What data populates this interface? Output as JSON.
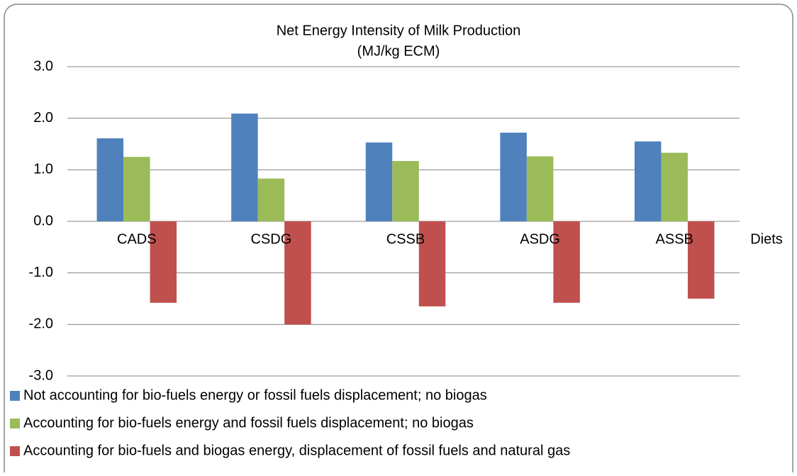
{
  "chart_data": {
    "type": "bar",
    "title": "Net Energy Intensity of Milk Production",
    "subtitle": "(MJ/kg ECM)",
    "x_label": "Diets",
    "categories": [
      "CADS",
      "CSDG",
      "CSSB",
      "ASDG",
      "ASSB"
    ],
    "series": [
      {
        "name": "Not accounting for bio-fuels energy or fossil fuels displacement; no biogas",
        "color": "#4f81bd",
        "values": [
          1.61,
          2.09,
          1.53,
          1.72,
          1.55
        ]
      },
      {
        "name": "Accounting for bio-fuels energy and fossil fuels displacement; no biogas",
        "color": "#9bbb59",
        "values": [
          1.25,
          0.83,
          1.17,
          1.26,
          1.33
        ]
      },
      {
        "name": "Accounting for bio-fuels and biogas energy, displacement of fossil fuels and natural gas",
        "color": "#c0504d",
        "values": [
          -1.58,
          -2.0,
          -1.65,
          -1.58,
          -1.5
        ]
      }
    ],
    "ylim": [
      -3,
      3
    ],
    "yticks": [
      {
        "value": -3,
        "label": "-3.0"
      },
      {
        "value": -2,
        "label": "-2.0"
      },
      {
        "value": -1,
        "label": "-1.0"
      },
      {
        "value": 0,
        "label": "0.0"
      },
      {
        "value": 1,
        "label": "1.0"
      },
      {
        "value": 2,
        "label": "2.0"
      },
      {
        "value": 3,
        "label": "3.0"
      }
    ],
    "grid": true,
    "legend": "bottom"
  }
}
